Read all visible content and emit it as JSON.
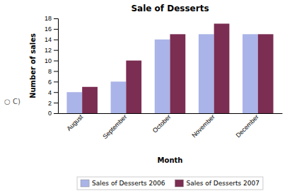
{
  "chart_data": {
    "type": "bar",
    "title": "Sale of Desserts",
    "xlabel": "Month",
    "ylabel": "Number of sales",
    "annotations": [
      "○ C)"
    ],
    "categories": [
      "August",
      "September",
      "October",
      "November",
      "December"
    ],
    "series": [
      {
        "name": "Sales of Desserts 2006",
        "color": "#aab4e8",
        "values": [
          4,
          6,
          14,
          15,
          15
        ]
      },
      {
        "name": "Sales of Desserts 2007",
        "color": "#7b2d52",
        "values": [
          5,
          10,
          15,
          17,
          15
        ]
      }
    ],
    "ylim": [
      0,
      18
    ],
    "yticks": [
      0,
      2,
      4,
      6,
      8,
      10,
      12,
      14,
      16,
      18
    ],
    "grid": false,
    "legend": "bottom"
  }
}
